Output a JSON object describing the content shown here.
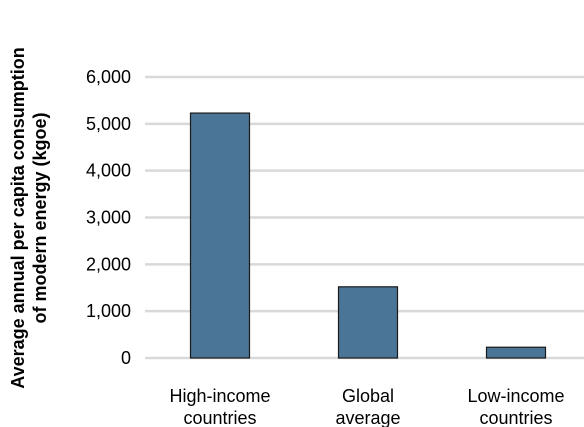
{
  "chart_data": {
    "type": "bar",
    "title": "",
    "xlabel": "",
    "ylabel": "Average annual per capita consumption of modern energy (kgoe)",
    "ylabel_lines": [
      "Average annual per capita consumption",
      "of modern energy (kgoe)"
    ],
    "categories": [
      "High-income countries",
      "Global average",
      "Low-income countries"
    ],
    "category_lines": [
      [
        "High-income",
        "countries"
      ],
      [
        "Global",
        "average"
      ],
      [
        "Low-income",
        "countries"
      ]
    ],
    "values": [
      5230,
      1520,
      230
    ],
    "ylim": [
      0,
      6000
    ],
    "yticks": [
      0,
      1000,
      2000,
      3000,
      4000,
      5000,
      6000
    ],
    "ytick_labels": [
      "0",
      "1,000",
      "2,000",
      "3,000",
      "4,000",
      "5,000",
      "6,000"
    ],
    "grid": true,
    "legend": "none",
    "colors": {
      "bar": "#4a7596",
      "grid": "#d9d9d9",
      "text": "#000000"
    }
  }
}
